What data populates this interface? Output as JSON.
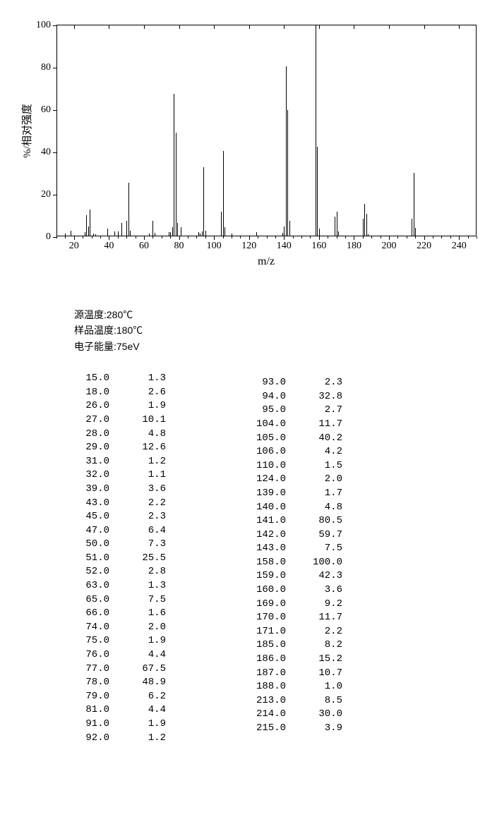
{
  "chart": {
    "type": "mass-spectrum-stick",
    "ylabel": "%/相对强度",
    "xlabel": "m/z",
    "title_fontsize": 16,
    "label_fontsize": 15,
    "tick_fontsize": 14,
    "background_color": "#ffffff",
    "line_color": "#000000",
    "xlim": [
      10,
      250
    ],
    "ylim": [
      0,
      100
    ],
    "xtick_step": 20,
    "xtick_start": 20,
    "ytick_step": 20,
    "xtick_minor_step": 5,
    "peaks": [
      {
        "mz": 15.0,
        "i": 1.3
      },
      {
        "mz": 18.0,
        "i": 2.6
      },
      {
        "mz": 26.0,
        "i": 1.9
      },
      {
        "mz": 27.0,
        "i": 10.1
      },
      {
        "mz": 28.0,
        "i": 4.8
      },
      {
        "mz": 29.0,
        "i": 12.6
      },
      {
        "mz": 31.0,
        "i": 1.2
      },
      {
        "mz": 32.0,
        "i": 1.1
      },
      {
        "mz": 39.0,
        "i": 3.6
      },
      {
        "mz": 43.0,
        "i": 2.2
      },
      {
        "mz": 45.0,
        "i": 2.3
      },
      {
        "mz": 47.0,
        "i": 6.4
      },
      {
        "mz": 50.0,
        "i": 7.3
      },
      {
        "mz": 51.0,
        "i": 25.5
      },
      {
        "mz": 52.0,
        "i": 2.8
      },
      {
        "mz": 63.0,
        "i": 1.3
      },
      {
        "mz": 65.0,
        "i": 7.5
      },
      {
        "mz": 66.0,
        "i": 1.6
      },
      {
        "mz": 74.0,
        "i": 2.0
      },
      {
        "mz": 75.0,
        "i": 1.9
      },
      {
        "mz": 76.0,
        "i": 4.4
      },
      {
        "mz": 77.0,
        "i": 67.5
      },
      {
        "mz": 78.0,
        "i": 48.9
      },
      {
        "mz": 79.0,
        "i": 6.2
      },
      {
        "mz": 81.0,
        "i": 4.4
      },
      {
        "mz": 91.0,
        "i": 1.9
      },
      {
        "mz": 92.0,
        "i": 1.2
      },
      {
        "mz": 93.0,
        "i": 2.3
      },
      {
        "mz": 94.0,
        "i": 32.8
      },
      {
        "mz": 95.0,
        "i": 2.7
      },
      {
        "mz": 104.0,
        "i": 11.7
      },
      {
        "mz": 105.0,
        "i": 40.2
      },
      {
        "mz": 106.0,
        "i": 4.2
      },
      {
        "mz": 110.0,
        "i": 1.5
      },
      {
        "mz": 124.0,
        "i": 2.0
      },
      {
        "mz": 139.0,
        "i": 1.7
      },
      {
        "mz": 140.0,
        "i": 4.8
      },
      {
        "mz": 141.0,
        "i": 80.5
      },
      {
        "mz": 142.0,
        "i": 59.7
      },
      {
        "mz": 143.0,
        "i": 7.5
      },
      {
        "mz": 158.0,
        "i": 100.0
      },
      {
        "mz": 159.0,
        "i": 42.3
      },
      {
        "mz": 160.0,
        "i": 3.6
      },
      {
        "mz": 169.0,
        "i": 9.2
      },
      {
        "mz": 170.0,
        "i": 11.7
      },
      {
        "mz": 171.0,
        "i": 2.2
      },
      {
        "mz": 185.0,
        "i": 8.2
      },
      {
        "mz": 186.0,
        "i": 15.2
      },
      {
        "mz": 187.0,
        "i": 10.7
      },
      {
        "mz": 188.0,
        "i": 1.0
      },
      {
        "mz": 213.0,
        "i": 8.5
      },
      {
        "mz": 214.0,
        "i": 30.0
      },
      {
        "mz": 215.0,
        "i": 3.9
      }
    ]
  },
  "meta": {
    "line1": "源温度:280℃",
    "line2": "样品温度:180℃",
    "line3": "电子能量:75eV"
  },
  "data_table": {
    "col_left": [
      [
        15.0,
        1.3
      ],
      [
        18.0,
        2.6
      ],
      [
        26.0,
        1.9
      ],
      [
        27.0,
        10.1
      ],
      [
        28.0,
        4.8
      ],
      [
        29.0,
        12.6
      ],
      [
        31.0,
        1.2
      ],
      [
        32.0,
        1.1
      ],
      [
        39.0,
        3.6
      ],
      [
        43.0,
        2.2
      ],
      [
        45.0,
        2.3
      ],
      [
        47.0,
        6.4
      ],
      [
        50.0,
        7.3
      ],
      [
        51.0,
        25.5
      ],
      [
        52.0,
        2.8
      ],
      [
        63.0,
        1.3
      ],
      [
        65.0,
        7.5
      ],
      [
        66.0,
        1.6
      ],
      [
        74.0,
        2.0
      ],
      [
        75.0,
        1.9
      ],
      [
        76.0,
        4.4
      ],
      [
        77.0,
        67.5
      ],
      [
        78.0,
        48.9
      ],
      [
        79.0,
        6.2
      ],
      [
        81.0,
        4.4
      ],
      [
        91.0,
        1.9
      ],
      [
        92.0,
        1.2
      ]
    ],
    "col_right": [
      [
        93.0,
        2.3
      ],
      [
        94.0,
        32.8
      ],
      [
        95.0,
        2.7
      ],
      [
        104.0,
        11.7
      ],
      [
        105.0,
        40.2
      ],
      [
        106.0,
        4.2
      ],
      [
        110.0,
        1.5
      ],
      [
        124.0,
        2.0
      ],
      [
        139.0,
        1.7
      ],
      [
        140.0,
        4.8
      ],
      [
        141.0,
        80.5
      ],
      [
        142.0,
        59.7
      ],
      [
        143.0,
        7.5
      ],
      [
        158.0,
        100.0
      ],
      [
        159.0,
        42.3
      ],
      [
        160.0,
        3.6
      ],
      [
        169.0,
        9.2
      ],
      [
        170.0,
        11.7
      ],
      [
        171.0,
        2.2
      ],
      [
        185.0,
        8.2
      ],
      [
        186.0,
        15.2
      ],
      [
        187.0,
        10.7
      ],
      [
        188.0,
        1.0
      ],
      [
        213.0,
        8.5
      ],
      [
        214.0,
        30.0
      ],
      [
        215.0,
        3.9
      ]
    ]
  }
}
